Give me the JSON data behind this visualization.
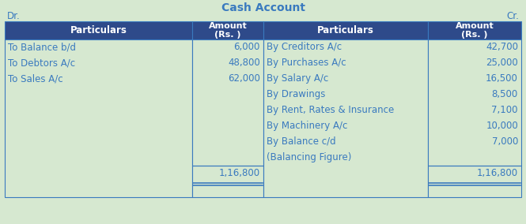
{
  "title": "Cash Account",
  "dr_label": "Dr.",
  "cr_label": "Cr.",
  "header_bg": "#2e4a8a",
  "header_text_color": "#ffffff",
  "body_bg": "#d6e8d0",
  "body_text_color": "#3a7abf",
  "border_color": "#3a7abf",
  "left_particulars": [
    "To Balance b/d",
    "To Debtors A/c",
    "To Sales A/c"
  ],
  "left_amounts": [
    "6,000",
    "48,800",
    "62,000"
  ],
  "left_total": "1,16,800",
  "right_particulars": [
    "By Creditors A/c",
    "By Purchases A/c",
    "By Salary A/c",
    "By Drawings",
    "By Rent, Rates & Insurance",
    "By Machinery A/c",
    "By Balance c/d",
    "(Balancing Figure)"
  ],
  "right_amounts": [
    "42,700",
    "25,000",
    "16,500",
    "8,500",
    "7,100",
    "10,000",
    "7,000",
    ""
  ],
  "right_total": "1,16,800",
  "col_header_particulars": "Particulars",
  "col_header_amount": "Amount\n(Rs. )"
}
